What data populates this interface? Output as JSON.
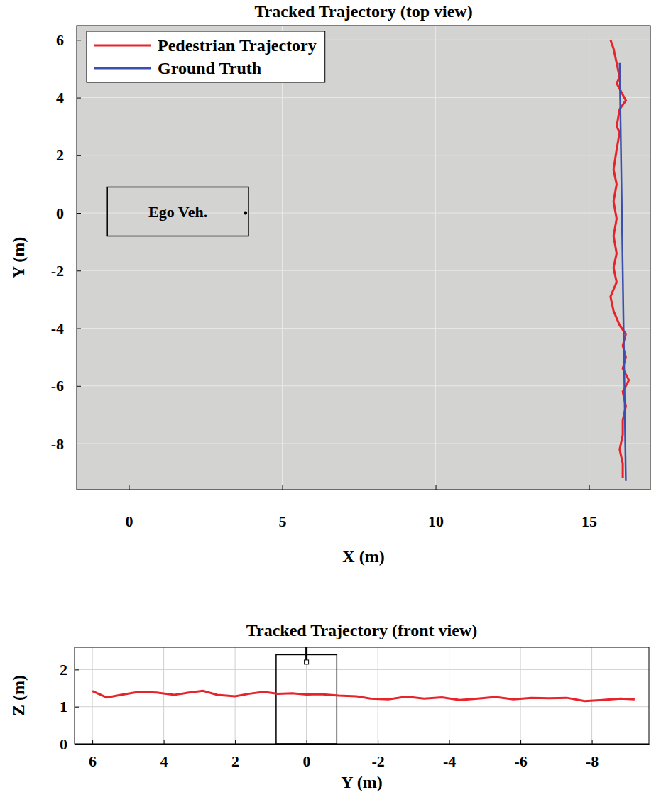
{
  "chart_data": [
    {
      "type": "line",
      "title": "Tracked Trajectory (top view)",
      "x_label": "X (m)",
      "y_label": "Y (m)",
      "xlim": [
        -1.7,
        17.0
      ],
      "ylim": [
        -9.6,
        6.5
      ],
      "xticks": [
        0,
        5,
        10,
        15
      ],
      "yticks": [
        -8,
        -6,
        -4,
        -2,
        0,
        2,
        4,
        6
      ],
      "grid": true,
      "legend": "upper left",
      "series": [
        {
          "name": "Pedestrian Trajectory",
          "color": "#e8232a",
          "x": [
            15.7,
            15.8,
            15.9,
            16.0,
            15.9,
            16.2,
            16.0,
            15.9,
            16.0,
            15.9,
            15.8,
            15.9,
            15.8,
            15.9,
            15.8,
            15.9,
            15.8,
            15.9,
            15.7,
            15.8,
            16.0,
            16.2,
            16.1,
            16.2,
            16.1,
            16.3,
            16.1,
            16.2,
            16.1,
            16.1,
            16.0,
            16.1,
            16.1
          ],
          "values": [
            6.0,
            5.7,
            5.2,
            4.7,
            4.5,
            3.9,
            3.6,
            3.0,
            2.8,
            2.2,
            1.5,
            1.0,
            0.4,
            -0.2,
            -0.8,
            -1.4,
            -1.9,
            -2.4,
            -2.9,
            -3.4,
            -3.9,
            -4.2,
            -4.6,
            -5.0,
            -5.4,
            -5.8,
            -6.2,
            -6.7,
            -7.2,
            -7.7,
            -8.2,
            -8.7,
            -9.2
          ]
        },
        {
          "name": "Ground Truth",
          "color": "#3a4fb0",
          "x": [
            16.0,
            16.2
          ],
          "values": [
            5.2,
            -9.3
          ]
        }
      ],
      "ego_vehicle": {
        "label": "Ego Veh.",
        "x": [
          -0.7,
          3.9
        ],
        "y": [
          -0.8,
          0.9
        ],
        "sensor": [
          3.8,
          0
        ]
      }
    },
    {
      "type": "line",
      "title": "Tracked Trajectory (front view)",
      "x_label": "Y (m)",
      "y_label": "Z (m)",
      "xlim": [
        6.5,
        -9.6
      ],
      "ylim": [
        0,
        2.6
      ],
      "xticks": [
        6,
        4,
        2,
        0,
        -2,
        -4,
        -6,
        -8
      ],
      "yticks": [
        0,
        1,
        2
      ],
      "grid": true,
      "series": [
        {
          "color": "#e8232a",
          "x": [
            6.0,
            5.6,
            5.2,
            4.7,
            4.2,
            3.7,
            3.3,
            2.9,
            2.5,
            2.0,
            1.6,
            1.2,
            0.8,
            0.4,
            0,
            -0.4,
            -0.9,
            -1.4,
            -1.8,
            -2.3,
            -2.8,
            -3.3,
            -3.8,
            -4.3,
            -4.8,
            -5.3,
            -5.8,
            -6.3,
            -6.8,
            -7.3,
            -7.8,
            -8.3,
            -8.8,
            -9.2
          ],
          "values": [
            1.42,
            1.25,
            1.32,
            1.4,
            1.38,
            1.32,
            1.38,
            1.43,
            1.32,
            1.28,
            1.35,
            1.4,
            1.35,
            1.36,
            1.33,
            1.34,
            1.3,
            1.28,
            1.22,
            1.2,
            1.27,
            1.22,
            1.25,
            1.18,
            1.22,
            1.26,
            1.2,
            1.24,
            1.23,
            1.24,
            1.15,
            1.18,
            1.22,
            1.2
          ]
        }
      ],
      "ego_vehicle": {
        "y": [
          0.85,
          -0.85
        ],
        "z": [
          0,
          2.4
        ],
        "sensor": [
          0,
          2.2
        ]
      }
    }
  ]
}
